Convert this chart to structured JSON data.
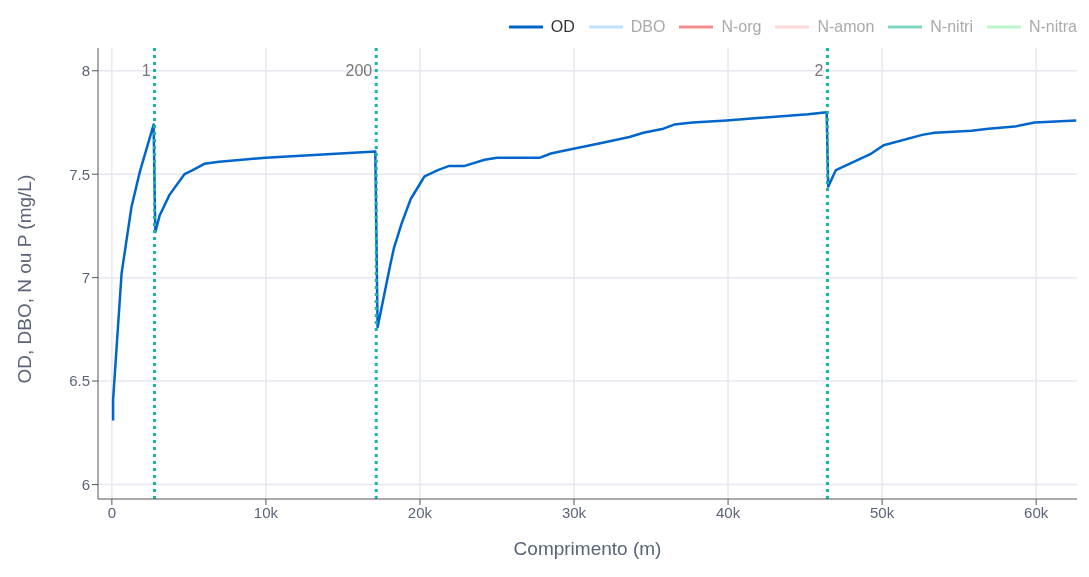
{
  "chart_data": {
    "type": "line",
    "xlabel": "Comprimento (m)",
    "ylabel": "OD, DBO, N ou P (mg/L)",
    "x": [
      80,
      80,
      630,
      1270,
      1810,
      2710,
      2820,
      3100,
      3740,
      4710,
      5250,
      6000,
      6970,
      9980,
      17100,
      17250,
      18040,
      18300,
      18800,
      19400,
      20300,
      21160,
      21900,
      22900,
      24200,
      25000,
      27800,
      28500,
      29100,
      31700,
      33600,
      34500,
      35800,
      36500,
      37700,
      39900,
      45200,
      46400,
      46500,
      47000,
      49300,
      50100,
      52600,
      53400,
      55800,
      56900,
      58600,
      59900,
      62600
    ],
    "series": [
      {
        "name": "OD",
        "color": "#0066cc",
        "values": [
          6.31,
          6.41,
          7.02,
          7.34,
          7.51,
          7.74,
          7.22,
          7.3,
          7.4,
          7.5,
          7.52,
          7.55,
          7.56,
          7.58,
          7.61,
          6.76,
          7.05,
          7.14,
          7.26,
          7.38,
          7.49,
          7.52,
          7.54,
          7.54,
          7.57,
          7.58,
          7.58,
          7.6,
          7.61,
          7.65,
          7.68,
          7.7,
          7.72,
          7.74,
          7.75,
          7.76,
          7.79,
          7.8,
          7.44,
          7.52,
          7.6,
          7.64,
          7.69,
          7.7,
          7.71,
          7.72,
          7.73,
          7.75,
          7.76
        ]
      },
      {
        "name": "DBO",
        "color": "#bfe3ff",
        "values": [
          null,
          null,
          null,
          null,
          null,
          null,
          null,
          null,
          null,
          null,
          null,
          null,
          null,
          null,
          null,
          null,
          null,
          null,
          null,
          null,
          null,
          null,
          null,
          null,
          null,
          null,
          null,
          null,
          null,
          null,
          null,
          null,
          null,
          null,
          null,
          null,
          null,
          null,
          null,
          null,
          null,
          null,
          null,
          null,
          null,
          null,
          null,
          null,
          null
        ]
      },
      {
        "name": "N-org",
        "color": "#f28e8e",
        "values": [
          null,
          null,
          null,
          null,
          null,
          null,
          null,
          null,
          null,
          null,
          null,
          null,
          null,
          null,
          null,
          null,
          null,
          null,
          null,
          null,
          null,
          null,
          null,
          null,
          null,
          null,
          null,
          null,
          null,
          null,
          null,
          null,
          null,
          null,
          null,
          null,
          null,
          null,
          null,
          null,
          null,
          null,
          null,
          null,
          null,
          null,
          null,
          null,
          null
        ]
      },
      {
        "name": "N-amon",
        "color": "#ffd6d6",
        "values": [
          null,
          null,
          null,
          null,
          null,
          null,
          null,
          null,
          null,
          null,
          null,
          null,
          null,
          null,
          null,
          null,
          null,
          null,
          null,
          null,
          null,
          null,
          null,
          null,
          null,
          null,
          null,
          null,
          null,
          null,
          null,
          null,
          null,
          null,
          null,
          null,
          null,
          null,
          null,
          null,
          null,
          null,
          null,
          null,
          null,
          null,
          null,
          null,
          null
        ]
      },
      {
        "name": "N-nitri",
        "color": "#7fd6c2",
        "values": [
          null,
          null,
          null,
          null,
          null,
          null,
          null,
          null,
          null,
          null,
          null,
          null,
          null,
          null,
          null,
          null,
          null,
          null,
          null,
          null,
          null,
          null,
          null,
          null,
          null,
          null,
          null,
          null,
          null,
          null,
          null,
          null,
          null,
          null,
          null,
          null,
          null,
          null,
          null,
          null,
          null,
          null,
          null,
          null,
          null,
          null,
          null,
          null,
          null
        ]
      },
      {
        "name": "N-nitra",
        "color": "#b9f5c9",
        "values": [
          null,
          null,
          null,
          null,
          null,
          null,
          null,
          null,
          null,
          null,
          null,
          null,
          null,
          null,
          null,
          null,
          null,
          null,
          null,
          null,
          null,
          null,
          null,
          null,
          null,
          null,
          null,
          null,
          null,
          null,
          null,
          null,
          null,
          null,
          null,
          null,
          null,
          null,
          null,
          null,
          null,
          null,
          null,
          null,
          null,
          null,
          null,
          null,
          null
        ]
      }
    ],
    "xlim": [
      -900,
      62650
    ],
    "ylim": [
      5.93,
      8.11
    ],
    "xticks": [
      0,
      {
        "value": 10000,
        "label": "10k"
      },
      {
        "value": 20000,
        "label": "20k"
      },
      {
        "value": 30000,
        "label": "30k"
      },
      {
        "value": 40000,
        "label": "40k"
      },
      {
        "value": 50000,
        "label": "50k"
      },
      {
        "value": 60000,
        "label": "60k"
      }
    ],
    "yticks": [
      6,
      6.5,
      7,
      7.5,
      8
    ],
    "ref_lines": [
      {
        "axis": "x",
        "value": 2770,
        "color": "#1ab5a0",
        "line_style": "dotted"
      },
      {
        "axis": "x",
        "value": 17160,
        "color": "#1ab5a0",
        "line_style": "dotted"
      },
      {
        "axis": "x",
        "value": 46450,
        "color": "#1ab5a0",
        "line_style": "dotted"
      }
    ],
    "annotations": [
      {
        "text": "1",
        "x": 2770,
        "y": 8.0
      },
      {
        "text": "200",
        "x": 17160,
        "y": 8.0
      },
      {
        "text": "2",
        "x": 46450,
        "y": 8.0
      }
    ],
    "grid": true,
    "legend": "top right",
    "line_style": "solid",
    "marker": "none"
  }
}
